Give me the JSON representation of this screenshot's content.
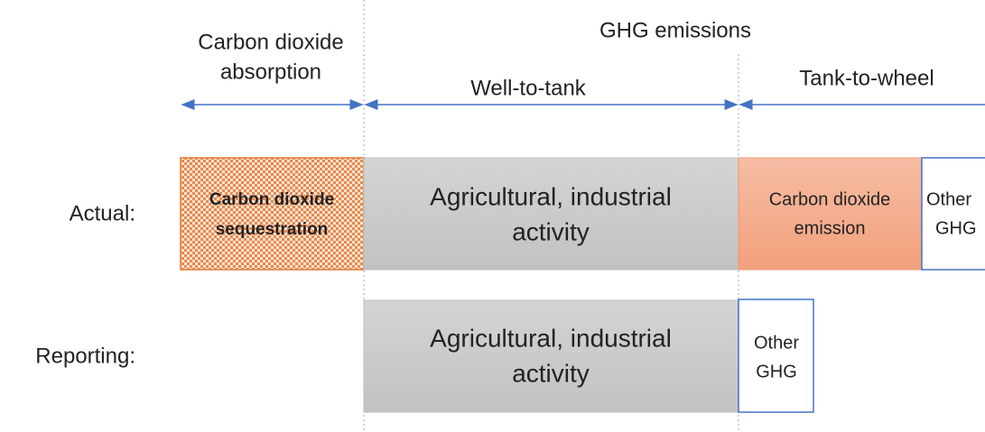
{
  "header": {
    "absorption": [
      "Carbon dioxide",
      "absorption"
    ],
    "emissions": "GHG emissions",
    "well_to_tank": "Well-to-tank",
    "tank_to_wheel": "Tank-to-wheel"
  },
  "rows": [
    {
      "label": "Actual:",
      "boxes": [
        {
          "lines": [
            "Carbon dioxide",
            "sequestration"
          ]
        },
        {
          "lines": [
            "Agricultural, industrial",
            "activity"
          ]
        },
        {
          "lines": [
            "Carbon dioxide",
            "emission"
          ]
        },
        {
          "lines": [
            "Other",
            "GHG"
          ]
        }
      ]
    },
    {
      "label": "Reporting:",
      "boxes": [
        {
          "lines": [
            "Agricultural, industrial",
            "activity"
          ]
        },
        {
          "lines": [
            "Other",
            "GHG"
          ]
        }
      ]
    }
  ]
}
